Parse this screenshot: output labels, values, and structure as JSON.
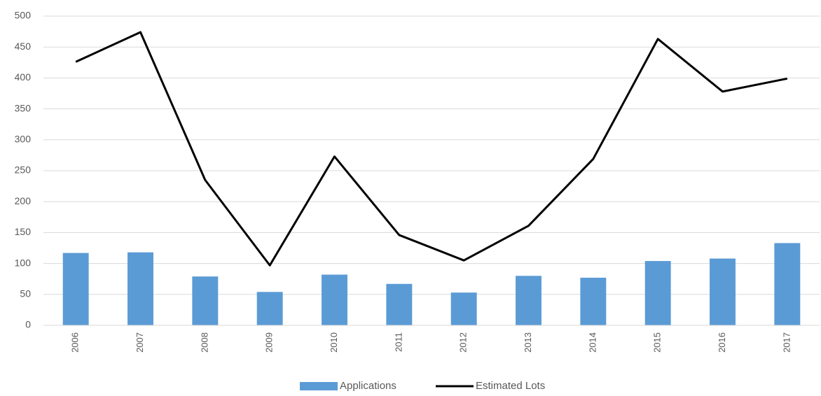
{
  "chart_data": {
    "type": "combo",
    "categories": [
      "2006",
      "2007",
      "2008",
      "2009",
      "2010",
      "2011",
      "2012",
      "2013",
      "2014",
      "2015",
      "2016",
      "2017"
    ],
    "series": [
      {
        "name": "Applications",
        "type": "bar",
        "color": "#5b9bd5",
        "values": [
          117,
          118,
          79,
          54,
          82,
          67,
          53,
          80,
          77,
          104,
          108,
          133
        ]
      },
      {
        "name": "Estimated Lots",
        "type": "line",
        "color": "#000000",
        "values": [
          426,
          474,
          235,
          97,
          273,
          146,
          105,
          161,
          269,
          463,
          378,
          399
        ]
      }
    ],
    "ylim": [
      0,
      500
    ],
    "yticks": [
      0,
      50,
      100,
      150,
      200,
      250,
      300,
      350,
      400,
      450,
      500
    ],
    "grid": true,
    "legend": "bottom"
  }
}
